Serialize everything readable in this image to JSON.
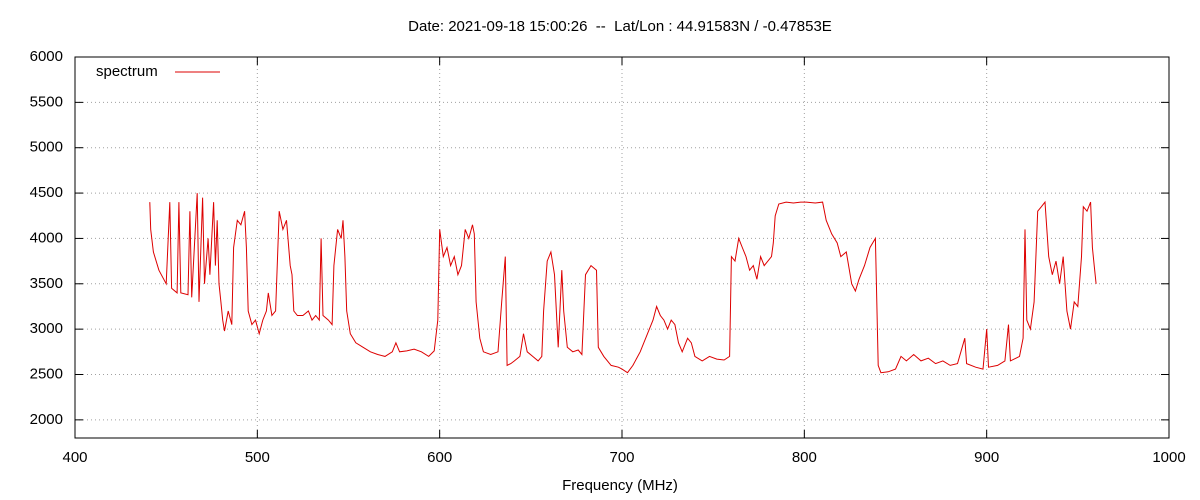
{
  "chart_data": {
    "type": "line",
    "title": "Date: 2021-09-18 15:00:26  --  Lat/Lon : 44.91583N / -0.47853E",
    "x_label": "Frequency (MHz)",
    "xlim": [
      400,
      1000
    ],
    "xticks": [
      400,
      500,
      600,
      700,
      800,
      900,
      1000
    ],
    "ylim": [
      1800,
      6000
    ],
    "yticks": [
      2000,
      2500,
      3000,
      3500,
      4000,
      4500,
      5000,
      5500,
      6000
    ],
    "grid": true,
    "legend": "top-left",
    "x": [
      441,
      441.5,
      443,
      446,
      450,
      452,
      453,
      456,
      457,
      458,
      462,
      463,
      464,
      467,
      468,
      470,
      471,
      473,
      474,
      476,
      477,
      478,
      479,
      480,
      481,
      482,
      484,
      486,
      487,
      489,
      491,
      493,
      494,
      495,
      497,
      499,
      501,
      503,
      505,
      506,
      508,
      510,
      512,
      514,
      516,
      518,
      519,
      520,
      522,
      525,
      528,
      530,
      532,
      534,
      535,
      536,
      539,
      541,
      542,
      544,
      546,
      547,
      548,
      549,
      551,
      554,
      558,
      562,
      566,
      570,
      574,
      576,
      578,
      582,
      586,
      590,
      594,
      597,
      599,
      600,
      602,
      604,
      606,
      608,
      610,
      612,
      614,
      616,
      618,
      619,
      620,
      622,
      624,
      628,
      632,
      634,
      636,
      637,
      639,
      641,
      644,
      646,
      648,
      651,
      654,
      656,
      657,
      659,
      661,
      663,
      665,
      667,
      668,
      670,
      673,
      676,
      678,
      680,
      683,
      686,
      687,
      690,
      694,
      698,
      700,
      703,
      706,
      710,
      714,
      717,
      719,
      721,
      723,
      725,
      727,
      729,
      731,
      733,
      736,
      738,
      740,
      744,
      748,
      752,
      756,
      759,
      760,
      762,
      764,
      766,
      768,
      770,
      772,
      774,
      776,
      778,
      780,
      782,
      783,
      784,
      786,
      790,
      794,
      798,
      801,
      806,
      810,
      812,
      815,
      818,
      820,
      823,
      826,
      828,
      830,
      833,
      836,
      839,
      840.5,
      842,
      846,
      850,
      853,
      856,
      860,
      864,
      868,
      872,
      876,
      880,
      884,
      888,
      889,
      894,
      898,
      900,
      901,
      906,
      910,
      912,
      913,
      918,
      920,
      921,
      922,
      924,
      926,
      928,
      930,
      932,
      934,
      936,
      938,
      940,
      942,
      944,
      946,
      948,
      950,
      952,
      953,
      955,
      957,
      958,
      959,
      960
    ],
    "series": [
      {
        "name": "spectrum",
        "color": "#dd0000",
        "values": [
          4400,
          4100,
          3850,
          3650,
          3500,
          4400,
          3450,
          3400,
          4400,
          3400,
          3380,
          4300,
          3350,
          4500,
          3300,
          4450,
          3500,
          4000,
          3600,
          4400,
          3700,
          4200,
          3500,
          3300,
          3100,
          2980,
          3200,
          3050,
          3900,
          4200,
          4150,
          4300,
          3900,
          3200,
          3050,
          3100,
          2950,
          3100,
          3200,
          3400,
          3150,
          3200,
          4300,
          4100,
          4200,
          3700,
          3600,
          3200,
          3150,
          3150,
          3200,
          3100,
          3150,
          3100,
          4000,
          3150,
          3100,
          3050,
          3700,
          4100,
          4000,
          4200,
          3800,
          3200,
          2950,
          2850,
          2800,
          2750,
          2720,
          2700,
          2750,
          2850,
          2750,
          2760,
          2780,
          2750,
          2700,
          2760,
          3100,
          4100,
          3800,
          3900,
          3700,
          3800,
          3600,
          3700,
          4100,
          4000,
          4150,
          4050,
          3300,
          2900,
          2750,
          2720,
          2750,
          3300,
          3800,
          2600,
          2620,
          2650,
          2700,
          2950,
          2750,
          2700,
          2650,
          2700,
          3200,
          3750,
          3850,
          3600,
          2800,
          3650,
          3200,
          2800,
          2750,
          2770,
          2720,
          3600,
          3700,
          3650,
          2800,
          2700,
          2600,
          2580,
          2560,
          2520,
          2600,
          2750,
          2950,
          3100,
          3250,
          3150,
          3100,
          3000,
          3100,
          3050,
          2850,
          2750,
          2900,
          2850,
          2700,
          2650,
          2700,
          2670,
          2660,
          2700,
          3800,
          3750,
          4000,
          3900,
          3800,
          3650,
          3700,
          3550,
          3800,
          3700,
          3750,
          3800,
          3950,
          4250,
          4380,
          4400,
          4390,
          4400,
          4400,
          4390,
          4400,
          4200,
          4050,
          3950,
          3800,
          3850,
          3500,
          3420,
          3550,
          3700,
          3900,
          4000,
          2600,
          2520,
          2530,
          2560,
          2700,
          2650,
          2720,
          2650,
          2680,
          2620,
          2650,
          2600,
          2620,
          2900,
          2620,
          2580,
          2560,
          3000,
          2580,
          2600,
          2650,
          3050,
          2650,
          2700,
          2900,
          4100,
          3100,
          3000,
          3300,
          4300,
          4350,
          4400,
          3800,
          3600,
          3750,
          3500,
          3800,
          3200,
          3000,
          3300,
          3250,
          3800,
          4350,
          4300,
          4400,
          3900,
          3700,
          3500
        ]
      }
    ]
  }
}
